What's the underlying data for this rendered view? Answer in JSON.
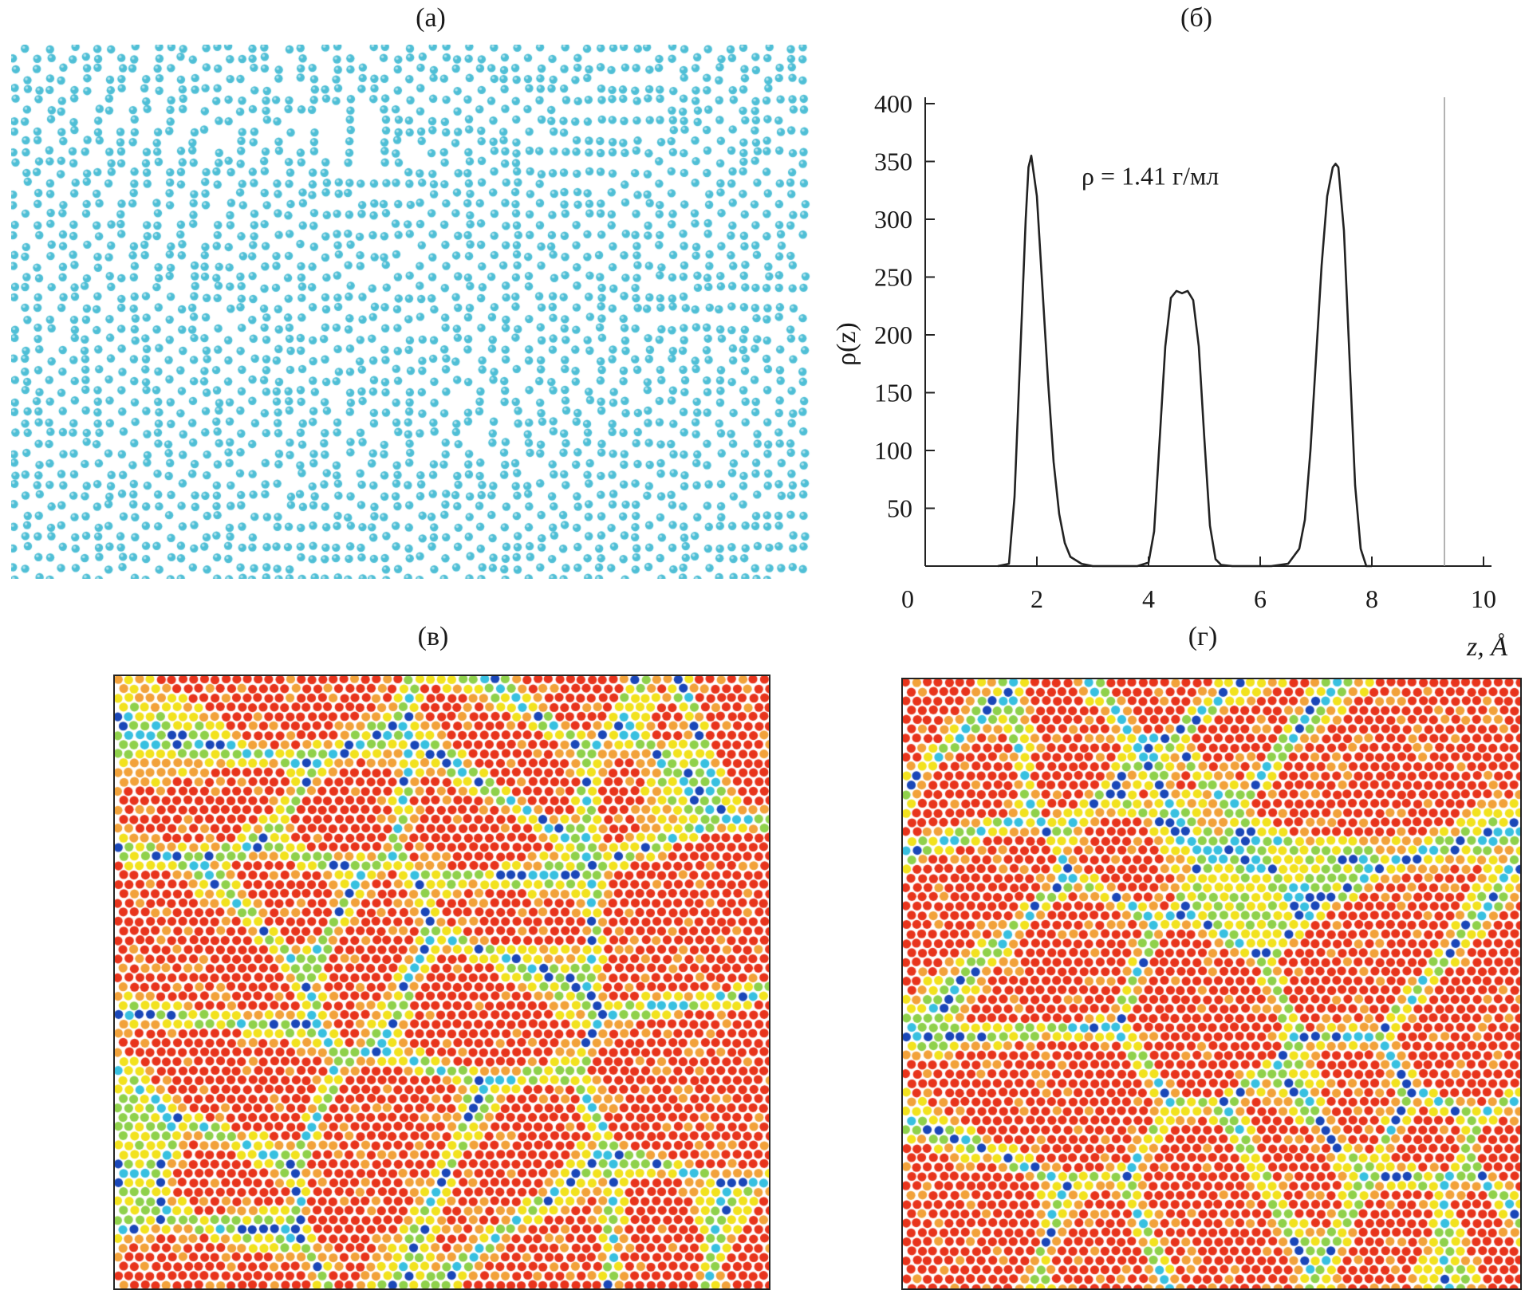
{
  "panels": {
    "a": {
      "label": "(а)"
    },
    "b": {
      "label": "(б)"
    },
    "v": {
      "label": "(в)"
    },
    "g": {
      "label": "(г)"
    }
  },
  "chart_data": {
    "type": "line",
    "title": "",
    "annotation": "ρ = 1.41 г/мл",
    "xlabel": "z, Å",
    "ylabel": "ρ(z)",
    "xlim": [
      0,
      10
    ],
    "ylim": [
      0,
      400
    ],
    "xticks": [
      0,
      2,
      4,
      6,
      8,
      10
    ],
    "yticks": [
      50,
      100,
      150,
      200,
      250,
      300,
      350,
      400
    ],
    "reference_line_x": 9.3,
    "series": [
      {
        "name": "density profile",
        "x": [
          1.3,
          1.5,
          1.6,
          1.7,
          1.8,
          1.85,
          1.9,
          2.0,
          2.1,
          2.2,
          2.3,
          2.4,
          2.5,
          2.6,
          2.8,
          3.0,
          3.5,
          3.8,
          4.0,
          4.1,
          4.2,
          4.3,
          4.4,
          4.5,
          4.6,
          4.7,
          4.8,
          4.9,
          5.0,
          5.1,
          5.2,
          5.3,
          5.5,
          5.8,
          6.2,
          6.5,
          6.7,
          6.8,
          6.9,
          7.0,
          7.1,
          7.2,
          7.3,
          7.35,
          7.4,
          7.5,
          7.6,
          7.7,
          7.8,
          7.9,
          8.0
        ],
        "y": [
          0,
          2,
          60,
          180,
          300,
          345,
          355,
          320,
          240,
          160,
          90,
          45,
          20,
          8,
          2,
          0,
          0,
          0,
          3,
          30,
          110,
          190,
          232,
          238,
          236,
          238,
          230,
          190,
          110,
          35,
          6,
          1,
          0,
          0,
          0,
          2,
          15,
          40,
          100,
          180,
          260,
          320,
          345,
          348,
          345,
          290,
          180,
          70,
          15,
          0,
          0
        ]
      }
    ]
  },
  "colors": {
    "panel_a_atoms": "#4fbfd6",
    "order_high": "#e8341c",
    "order_mid_high": "#f2a23a",
    "order_mid": "#f2e21e",
    "order_mid_low": "#8fd14b",
    "order_low": "#38c0e0",
    "order_lowest": "#1a47b8"
  }
}
